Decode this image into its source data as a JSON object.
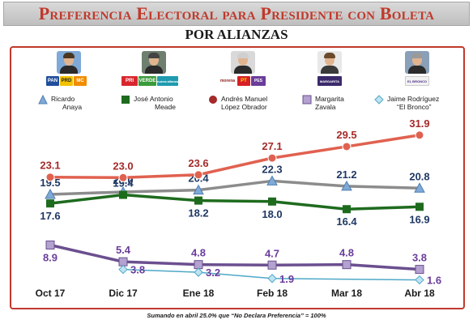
{
  "title": "Preferencia Electoral para Presidente con Boleta",
  "subtitle": "POR ALIANZAS",
  "footnote": "Sumando en abril 25.0% que “No Declara Preferencia” = 100%",
  "candidates": [
    {
      "line1": "Ricardo",
      "line2": "Anaya",
      "parties": [
        "PAN",
        "PRD",
        "MC"
      ]
    },
    {
      "line1": "José Antonio",
      "line2": "Meade",
      "parties": [
        "PRI",
        "VERDE",
        "nueva alianza"
      ]
    },
    {
      "line1": "Andrés Manuel",
      "line2": "López Obrador",
      "parties": [
        "morena",
        "PT",
        "PES"
      ]
    },
    {
      "line1": "Margarita",
      "line2": "Zavala",
      "parties": [
        "MARGARITA"
      ]
    },
    {
      "line1": "Jaime Rodríguez",
      "line2": "“El Bronco”",
      "parties": [
        "EL BRONCO"
      ]
    }
  ],
  "chart_data": {
    "type": "line",
    "categories": [
      "Oct 17",
      "Dic 17",
      "Ene 18",
      "Feb 18",
      "Mar 18",
      "Abr 18"
    ],
    "series": [
      {
        "name": "Ricardo Anaya",
        "values": [
          19.5,
          20.0,
          20.4,
          22.3,
          21.2,
          20.8
        ],
        "labels": [
          "19.5",
          "20.0",
          "20.4",
          "22.3",
          "21.2",
          "20.8"
        ],
        "color": "#8c8c8c",
        "marker": "triangle",
        "label_color": "#1f3864"
      },
      {
        "name": "José Antonio Meade",
        "values": [
          17.6,
          19.4,
          18.2,
          18.0,
          16.4,
          16.9
        ],
        "labels": [
          "17.6",
          "19.4",
          "18.2",
          "18.0",
          "16.4",
          "16.9"
        ],
        "color": "#1e6b1e",
        "marker": "square",
        "label_color": "#1f3864"
      },
      {
        "name": "Andrés Manuel López Obrador",
        "values": [
          23.1,
          23.0,
          23.6,
          27.1,
          29.5,
          31.9
        ],
        "labels": [
          "23.1",
          "23.0",
          "23.6",
          "27.1",
          "29.5",
          "31.9"
        ],
        "color": "#e0614f",
        "marker": "circle",
        "label_color": "#a52a2a"
      },
      {
        "name": "Margarita Zavala",
        "values": [
          8.9,
          5.4,
          4.8,
          4.7,
          4.8,
          3.8
        ],
        "labels": [
          "8.9",
          "5.4",
          "4.8",
          "4.7",
          "4.8",
          "3.8"
        ],
        "color": "#6b4f8f",
        "marker": "square",
        "label_color": "#6a3d9a"
      },
      {
        "name": "Jaime Rodríguez “El Bronco”",
        "values": [
          null,
          3.8,
          3.2,
          1.9,
          null,
          1.6
        ],
        "labels": [
          "",
          "3.8",
          "3.2",
          "1.9",
          "",
          "1.6"
        ],
        "color": "#4fa8c8",
        "marker": "diamond",
        "label_color": "#6a3d9a"
      }
    ],
    "ylim": [
      0,
      36
    ],
    "grid": false,
    "legend": "top"
  },
  "colors": {
    "accent_red": "#c0392b"
  }
}
